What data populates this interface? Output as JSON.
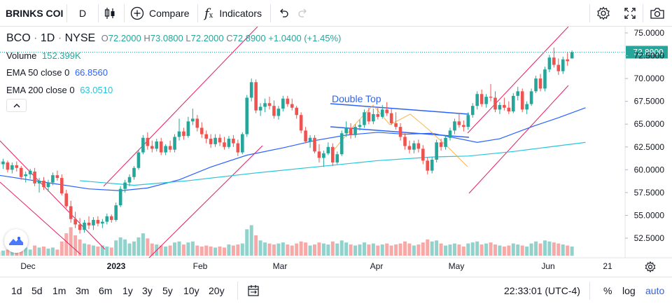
{
  "toolbar": {
    "symbol": "BRINKS COI",
    "interval": "D",
    "compare_label": "Compare",
    "indicators_label": "Indicators"
  },
  "legend": {
    "ticker": "BCO",
    "interval": "1D",
    "exchange": "NYSE",
    "o_label": "O",
    "o_value": "72.2000",
    "h_label": "H",
    "h_value": "73.0800",
    "l_label": "L",
    "l_value": "72.2000",
    "c_label": "C",
    "c_value": "72.8900",
    "change": "+1.0400 (+1.45%)",
    "volume_label": "Volume",
    "volume_value": "152.399K",
    "ema50_label": "EMA 50 close 0",
    "ema50_value": "66.8560",
    "ema200_label": "EMA 200 close 0",
    "ema200_value": "63.0510"
  },
  "bottombar": {
    "ranges": [
      "1d",
      "5d",
      "1m",
      "3m",
      "6m",
      "1y",
      "3y",
      "5y",
      "10y",
      "20y"
    ],
    "time": "22:33:01 (UTC-4)",
    "percent": "%",
    "log": "log",
    "auto": "auto"
  },
  "colors": {
    "up": "#26a69a",
    "down": "#ef5350",
    "ema50": "#2962ff",
    "ema200": "#26c6da",
    "channel": "#e91e63",
    "annotation": "#2962ff",
    "price_tag": "#26a69a"
  },
  "chart_data": {
    "type": "candlestick",
    "y_ticks": [
      "75.0000",
      "72.5000",
      "70.0000",
      "67.5000",
      "65.0000",
      "62.5000",
      "60.0000",
      "57.5000",
      "55.0000",
      "52.5000"
    ],
    "ylim": [
      50.5,
      76.5
    ],
    "x_ticks": [
      "Dec",
      "2023",
      "Feb",
      "Mar",
      "Apr",
      "May",
      "Jun",
      "21"
    ],
    "last_price": "72.8900",
    "annotation": "Double Top",
    "series": [
      {
        "name": "EMA 50 close 0",
        "points": [
          [
            0,
            59.4
          ],
          [
            12,
            58.5
          ],
          [
            20,
            57.9
          ],
          [
            27,
            57.7
          ],
          [
            33,
            58.0
          ],
          [
            40,
            58.9
          ],
          [
            47,
            60.3
          ],
          [
            55,
            61.6
          ],
          [
            63,
            62.4
          ],
          [
            70,
            63.2
          ],
          [
            77,
            63.8
          ],
          [
            84,
            64.1
          ],
          [
            90,
            63.9
          ],
          [
            96,
            64.0
          ],
          [
            100,
            63.6
          ],
          [
            106,
            63.0
          ],
          [
            111,
            63.4
          ],
          [
            118,
            64.7
          ],
          [
            124,
            65.7
          ],
          [
            130,
            66.8
          ]
        ]
      },
      {
        "name": "EMA 200 close 0",
        "points": [
          [
            18,
            58.8
          ],
          [
            30,
            58.3
          ],
          [
            42,
            58.8
          ],
          [
            56,
            59.6
          ],
          [
            70,
            60.3
          ],
          [
            84,
            61.0
          ],
          [
            96,
            61.4
          ],
          [
            104,
            61.5
          ],
          [
            114,
            62.0
          ],
          [
            122,
            62.5
          ],
          [
            130,
            63.0
          ]
        ]
      }
    ],
    "candles": [
      [
        60.9,
        61.4,
        60.2,
        60.6,
        4
      ],
      [
        60.6,
        61.2,
        60.1,
        60.9,
        5
      ],
      [
        60.8,
        61.0,
        59.7,
        60.0,
        6
      ],
      [
        60.0,
        60.8,
        59.6,
        60.5,
        5
      ],
      [
        60.5,
        60.9,
        59.8,
        60.2,
        7
      ],
      [
        60.2,
        60.4,
        58.9,
        59.2,
        9
      ],
      [
        59.3,
        59.8,
        58.6,
        59.5,
        8
      ],
      [
        59.5,
        60.1,
        59.0,
        59.9,
        6
      ],
      [
        59.8,
        60.2,
        58.2,
        58.5,
        10
      ],
      [
        58.5,
        59.1,
        57.5,
        58.8,
        8
      ],
      [
        58.8,
        59.2,
        57.8,
        58.1,
        9
      ],
      [
        58.1,
        58.9,
        57.6,
        58.6,
        7
      ],
      [
        58.6,
        59.7,
        58.3,
        59.4,
        8
      ],
      [
        59.4,
        59.9,
        58.8,
        59.1,
        6
      ],
      [
        59.1,
        59.5,
        57.2,
        57.4,
        14
      ],
      [
        57.4,
        57.8,
        55.8,
        56.0,
        22
      ],
      [
        56.0,
        56.6,
        54.2,
        54.6,
        28
      ],
      [
        54.6,
        55.4,
        53.6,
        54.0,
        20
      ],
      [
        54.0,
        54.7,
        53.0,
        53.4,
        16
      ],
      [
        53.4,
        54.5,
        53.1,
        54.2,
        12
      ],
      [
        54.2,
        54.9,
        53.5,
        53.9,
        11
      ],
      [
        53.9,
        54.8,
        53.4,
        54.5,
        10
      ],
      [
        54.5,
        54.9,
        53.8,
        54.1,
        9
      ],
      [
        54.1,
        54.6,
        53.6,
        54.3,
        10
      ],
      [
        54.3,
        55.2,
        54.0,
        54.9,
        9
      ],
      [
        54.9,
        55.1,
        54.2,
        54.5,
        8
      ],
      [
        54.5,
        56.4,
        54.3,
        56.1,
        15
      ],
      [
        56.1,
        58.2,
        55.9,
        57.9,
        18
      ],
      [
        57.9,
        58.9,
        57.5,
        58.6,
        16
      ],
      [
        58.6,
        59.5,
        58.2,
        59.2,
        12
      ],
      [
        59.2,
        60.4,
        58.9,
        60.2,
        14
      ],
      [
        60.2,
        62.2,
        60.0,
        61.9,
        18
      ],
      [
        61.9,
        63.8,
        61.7,
        63.5,
        22
      ],
      [
        63.5,
        64.1,
        62.2,
        62.6,
        17
      ],
      [
        62.6,
        63.2,
        61.9,
        62.3,
        12
      ],
      [
        62.3,
        63.4,
        62.0,
        63.1,
        11
      ],
      [
        63.1,
        63.5,
        61.6,
        61.9,
        10
      ],
      [
        61.9,
        62.8,
        61.6,
        62.6,
        9
      ],
      [
        62.6,
        63.2,
        61.9,
        62.2,
        10
      ],
      [
        62.2,
        63.9,
        61.9,
        63.6,
        13
      ],
      [
        63.6,
        65.6,
        63.2,
        64.2,
        14
      ],
      [
        64.2,
        64.6,
        63.3,
        63.7,
        11
      ],
      [
        63.7,
        65.8,
        63.5,
        65.3,
        13
      ],
      [
        65.3,
        66.7,
        64.9,
        65.6,
        14
      ],
      [
        65.6,
        66.0,
        64.2,
        64.6,
        10
      ],
      [
        64.6,
        65.2,
        63.5,
        63.9,
        9
      ],
      [
        63.9,
        64.3,
        62.9,
        63.4,
        10
      ],
      [
        63.4,
        63.9,
        62.4,
        62.8,
        9
      ],
      [
        62.8,
        63.9,
        62.5,
        63.5,
        8
      ],
      [
        63.5,
        63.9,
        62.6,
        63.0,
        9
      ],
      [
        63.0,
        63.6,
        62.2,
        62.5,
        8
      ],
      [
        62.5,
        63.7,
        62.3,
        63.4,
        11
      ],
      [
        63.4,
        63.8,
        62.5,
        62.9,
        10
      ],
      [
        62.9,
        63.3,
        61.5,
        61.9,
        11
      ],
      [
        61.9,
        64.1,
        61.7,
        63.9,
        12
      ],
      [
        63.9,
        68.2,
        63.6,
        67.9,
        26
      ],
      [
        67.9,
        70.0,
        67.5,
        69.6,
        30
      ],
      [
        69.6,
        69.9,
        66.2,
        66.5,
        20
      ],
      [
        66.5,
        67.3,
        65.9,
        66.9,
        15
      ],
      [
        66.9,
        67.8,
        66.3,
        67.3,
        13
      ],
      [
        67.3,
        68.0,
        66.6,
        67.0,
        12
      ],
      [
        67.0,
        67.6,
        65.6,
        65.9,
        11
      ],
      [
        65.9,
        67.0,
        65.5,
        66.7,
        12
      ],
      [
        66.7,
        68.1,
        66.4,
        67.8,
        13
      ],
      [
        67.8,
        68.1,
        66.9,
        67.2,
        11
      ],
      [
        67.2,
        67.8,
        66.5,
        66.8,
        10
      ],
      [
        66.8,
        67.0,
        65.6,
        66.0,
        12
      ],
      [
        66.0,
        66.3,
        64.0,
        64.3,
        14
      ],
      [
        64.3,
        64.7,
        62.9,
        63.1,
        13
      ],
      [
        63.1,
        63.8,
        62.4,
        63.5,
        10
      ],
      [
        63.5,
        63.8,
        61.8,
        62.0,
        11
      ],
      [
        62.0,
        62.8,
        60.8,
        61.3,
        13
      ],
      [
        61.3,
        62.1,
        60.3,
        61.8,
        12
      ],
      [
        61.8,
        63.0,
        61.6,
        62.5,
        11
      ],
      [
        62.5,
        62.9,
        60.4,
        60.8,
        14
      ],
      [
        60.8,
        62.0,
        60.6,
        61.7,
        12
      ],
      [
        61.7,
        64.3,
        61.5,
        64.0,
        15
      ],
      [
        64.0,
        65.3,
        63.6,
        64.6,
        13
      ],
      [
        64.6,
        65.1,
        63.4,
        63.8,
        11
      ],
      [
        63.8,
        65.0,
        63.5,
        64.7,
        10
      ],
      [
        64.7,
        65.5,
        64.3,
        64.9,
        11
      ],
      [
        64.9,
        66.6,
        64.6,
        66.3,
        13
      ],
      [
        66.3,
        66.8,
        65.0,
        65.3,
        11
      ],
      [
        65.3,
        66.7,
        65.0,
        66.1,
        12
      ],
      [
        66.1,
        66.9,
        65.5,
        65.8,
        10
      ],
      [
        65.8,
        67.1,
        65.6,
        66.6,
        11
      ],
      [
        66.6,
        67.4,
        65.9,
        66.2,
        12
      ],
      [
        66.2,
        66.7,
        64.9,
        65.1,
        10
      ],
      [
        65.1,
        66.3,
        64.4,
        64.7,
        11
      ],
      [
        64.7,
        65.1,
        63.2,
        63.6,
        12
      ],
      [
        63.6,
        64.0,
        62.2,
        62.6,
        14
      ],
      [
        62.6,
        63.2,
        61.8,
        62.2,
        12
      ],
      [
        62.2,
        63.2,
        61.8,
        62.9,
        10
      ],
      [
        62.9,
        63.3,
        61.9,
        62.3,
        11
      ],
      [
        62.3,
        62.7,
        60.6,
        61.0,
        13
      ],
      [
        61.0,
        61.4,
        59.5,
        59.9,
        16
      ],
      [
        59.9,
        61.4,
        59.6,
        61.1,
        14
      ],
      [
        61.1,
        63.3,
        60.8,
        63.0,
        15
      ],
      [
        63.0,
        63.4,
        62.1,
        62.5,
        12
      ],
      [
        62.5,
        63.8,
        62.2,
        63.5,
        10
      ],
      [
        63.5,
        64.6,
        63.2,
        64.3,
        11
      ],
      [
        64.3,
        65.6,
        63.9,
        65.3,
        12
      ],
      [
        65.3,
        66.2,
        64.6,
        64.9,
        11
      ],
      [
        64.9,
        65.4,
        64.2,
        64.7,
        9
      ],
      [
        64.7,
        66.3,
        64.4,
        66.0,
        12
      ],
      [
        66.0,
        67.3,
        65.7,
        67.0,
        13
      ],
      [
        67.0,
        68.6,
        66.6,
        68.3,
        14
      ],
      [
        68.3,
        68.8,
        66.9,
        67.2,
        11
      ],
      [
        67.2,
        68.3,
        66.8,
        68.0,
        12
      ],
      [
        68.0,
        69.4,
        67.5,
        67.9,
        13
      ],
      [
        67.9,
        68.6,
        66.3,
        66.6,
        11
      ],
      [
        66.6,
        67.4,
        66.1,
        67.1,
        10
      ],
      [
        67.1,
        67.9,
        66.5,
        66.8,
        9
      ],
      [
        66.8,
        67.5,
        66.1,
        66.4,
        10
      ],
      [
        66.4,
        68.4,
        66.2,
        68.1,
        12
      ],
      [
        68.1,
        69.1,
        67.6,
        68.6,
        11
      ],
      [
        68.6,
        68.9,
        66.3,
        66.6,
        10
      ],
      [
        66.6,
        67.5,
        66.1,
        67.2,
        9
      ],
      [
        67.2,
        68.9,
        67.0,
        68.6,
        12
      ],
      [
        68.6,
        70.3,
        68.4,
        70.0,
        14
      ],
      [
        70.0,
        70.5,
        68.6,
        68.9,
        12
      ],
      [
        68.9,
        71.3,
        68.6,
        71.0,
        15
      ],
      [
        71.0,
        72.6,
        70.7,
        72.3,
        14
      ],
      [
        72.3,
        73.4,
        71.2,
        71.5,
        13
      ],
      [
        71.5,
        72.2,
        70.4,
        70.8,
        12
      ],
      [
        70.8,
        72.4,
        70.5,
        72.1,
        11
      ],
      [
        72.1,
        72.9,
        71.4,
        71.9,
        10
      ],
      [
        72.2,
        73.08,
        72.2,
        72.89,
        9
      ]
    ]
  }
}
